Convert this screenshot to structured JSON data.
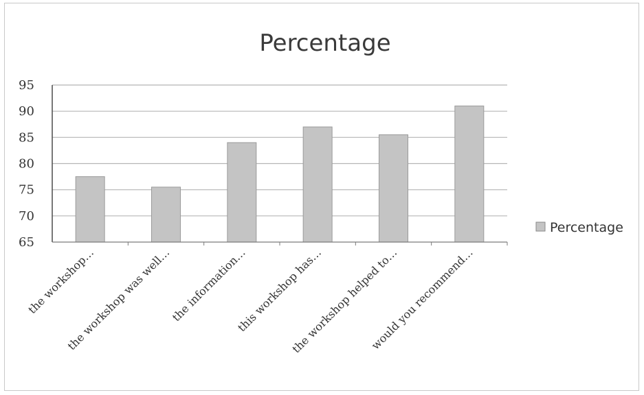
{
  "chart_data": {
    "type": "bar",
    "title": "Percentage",
    "categories": [
      "the workshop…",
      "the workshop was well…",
      "the information…",
      "this workshop has…",
      "the workshop helped to…",
      "would you recommend…"
    ],
    "series": [
      {
        "name": "Percentage",
        "values": [
          77.5,
          75.5,
          84,
          87,
          85.5,
          91
        ]
      }
    ],
    "ylim": [
      65,
      95
    ],
    "yticks": [
      95,
      90,
      85,
      80,
      75,
      70,
      65
    ],
    "grid": true,
    "legend": "right",
    "bar_color": "#c4c4c4",
    "grid_color": "#b5b5b5"
  }
}
